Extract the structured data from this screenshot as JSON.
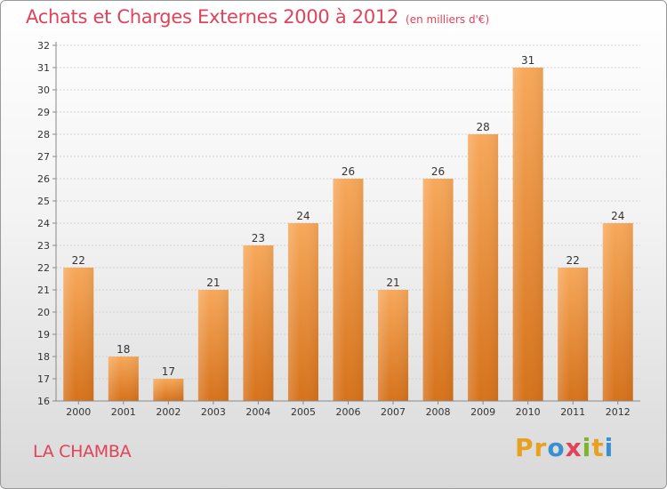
{
  "page": {
    "title": "Achats et Charges Externes 2000 à 2012",
    "unit": "(en milliers d'€)",
    "place": "LA CHAMBA",
    "logo": "Proxiti"
  },
  "colors": {
    "title": "#e0435a",
    "bar_top": "#f7a85a",
    "bar_bottom": "#d6721b",
    "logo_letters": [
      "#e8a020",
      "#e8a020",
      "#3a8fd0",
      "#e0435a",
      "#7ab530",
      "#e8a020",
      "#3a8fd0"
    ]
  },
  "chart_data": {
    "type": "bar",
    "title": "Achats et Charges Externes 2000 à 2012",
    "categories": [
      "2000",
      "2001",
      "2002",
      "2003",
      "2004",
      "2005",
      "2006",
      "2007",
      "2008",
      "2009",
      "2010",
      "2011",
      "2012"
    ],
    "values": [
      22,
      18,
      17,
      21,
      23,
      24,
      26,
      21,
      26,
      28,
      31,
      22,
      24
    ],
    "ylim": [
      16,
      32
    ],
    "yticks": [
      16,
      17,
      18,
      19,
      20,
      21,
      22,
      23,
      24,
      25,
      26,
      27,
      28,
      29,
      30,
      31,
      32
    ],
    "grid": true,
    "data_labels": true
  }
}
